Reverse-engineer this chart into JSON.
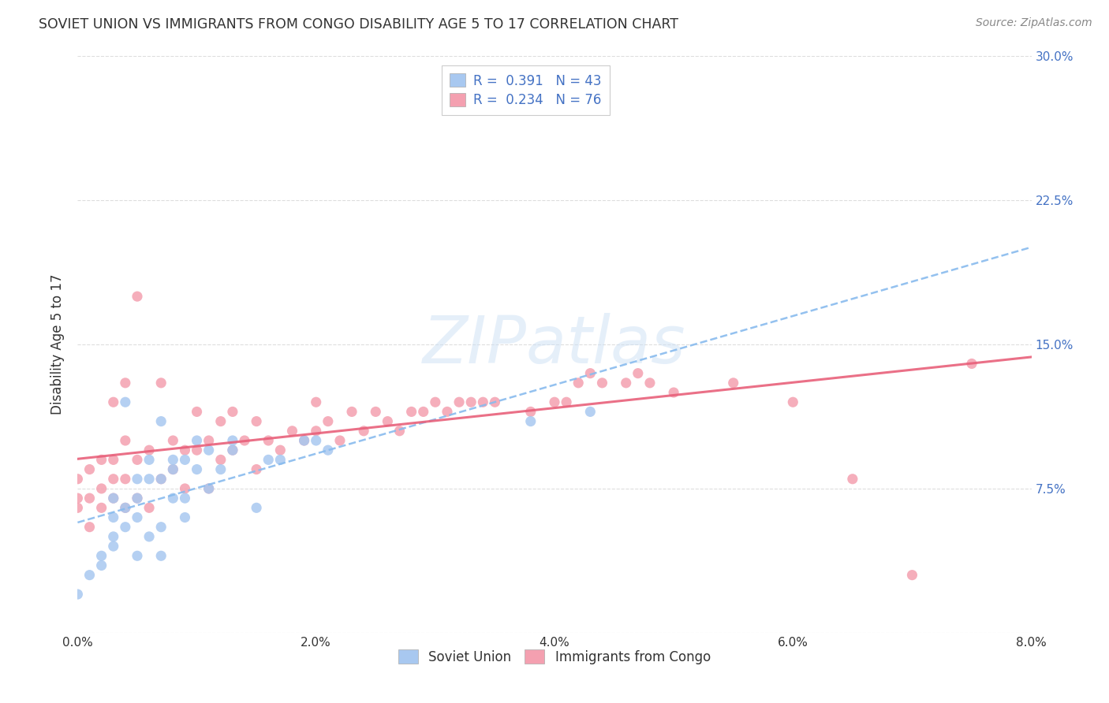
{
  "title": "SOVIET UNION VS IMMIGRANTS FROM CONGO DISABILITY AGE 5 TO 17 CORRELATION CHART",
  "source": "Source: ZipAtlas.com",
  "ylabel": "Disability Age 5 to 17",
  "x_min": 0.0,
  "x_max": 0.08,
  "y_min": 0.0,
  "y_max": 0.3,
  "x_ticks": [
    0.0,
    0.02,
    0.04,
    0.06,
    0.08
  ],
  "x_tick_labels": [
    "0.0%",
    "2.0%",
    "4.0%",
    "6.0%",
    "8.0%"
  ],
  "y_ticks": [
    0.0,
    0.075,
    0.15,
    0.225,
    0.3
  ],
  "y_tick_labels": [
    "",
    "7.5%",
    "15.0%",
    "22.5%",
    "30.0%"
  ],
  "legend_R1": "0.391",
  "legend_N1": "43",
  "legend_R2": "0.234",
  "legend_N2": "76",
  "color_soviet": "#a8c8f0",
  "color_congo": "#f4a0b0",
  "color_trendline_soviet": "#88bbee",
  "color_trendline_congo": "#e8607a",
  "watermark_color": "#cce0f5",
  "watermark": "ZIPatlas",
  "label_color": "#4472c4",
  "text_color": "#333333",
  "source_color": "#888888",
  "grid_color": "#dddddd",
  "soviet_x": [
    0.0,
    0.001,
    0.002,
    0.002,
    0.003,
    0.003,
    0.003,
    0.003,
    0.004,
    0.004,
    0.004,
    0.005,
    0.005,
    0.005,
    0.005,
    0.006,
    0.006,
    0.006,
    0.007,
    0.007,
    0.007,
    0.007,
    0.008,
    0.008,
    0.008,
    0.009,
    0.009,
    0.009,
    0.01,
    0.01,
    0.011,
    0.011,
    0.012,
    0.013,
    0.013,
    0.015,
    0.016,
    0.017,
    0.019,
    0.02,
    0.021,
    0.038,
    0.043
  ],
  "soviet_y": [
    0.02,
    0.03,
    0.04,
    0.035,
    0.05,
    0.06,
    0.045,
    0.07,
    0.055,
    0.065,
    0.12,
    0.04,
    0.06,
    0.07,
    0.08,
    0.05,
    0.08,
    0.09,
    0.04,
    0.055,
    0.08,
    0.11,
    0.07,
    0.085,
    0.09,
    0.06,
    0.07,
    0.09,
    0.085,
    0.1,
    0.075,
    0.095,
    0.085,
    0.095,
    0.1,
    0.065,
    0.09,
    0.09,
    0.1,
    0.1,
    0.095,
    0.11,
    0.115
  ],
  "congo_x": [
    0.0,
    0.0,
    0.0,
    0.001,
    0.001,
    0.001,
    0.002,
    0.002,
    0.002,
    0.003,
    0.003,
    0.003,
    0.003,
    0.004,
    0.004,
    0.004,
    0.004,
    0.005,
    0.005,
    0.005,
    0.006,
    0.006,
    0.007,
    0.007,
    0.008,
    0.008,
    0.009,
    0.009,
    0.01,
    0.01,
    0.011,
    0.011,
    0.012,
    0.012,
    0.013,
    0.013,
    0.014,
    0.015,
    0.015,
    0.016,
    0.017,
    0.018,
    0.019,
    0.02,
    0.02,
    0.021,
    0.022,
    0.023,
    0.024,
    0.025,
    0.026,
    0.027,
    0.028,
    0.029,
    0.03,
    0.031,
    0.032,
    0.033,
    0.034,
    0.035,
    0.036,
    0.038,
    0.04,
    0.041,
    0.042,
    0.043,
    0.044,
    0.046,
    0.047,
    0.048,
    0.05,
    0.055,
    0.06,
    0.065,
    0.07,
    0.075
  ],
  "congo_y": [
    0.065,
    0.08,
    0.07,
    0.055,
    0.07,
    0.085,
    0.065,
    0.075,
    0.09,
    0.07,
    0.08,
    0.09,
    0.12,
    0.065,
    0.08,
    0.1,
    0.13,
    0.07,
    0.09,
    0.175,
    0.065,
    0.095,
    0.08,
    0.13,
    0.085,
    0.1,
    0.075,
    0.095,
    0.095,
    0.115,
    0.075,
    0.1,
    0.09,
    0.11,
    0.095,
    0.115,
    0.1,
    0.085,
    0.11,
    0.1,
    0.095,
    0.105,
    0.1,
    0.105,
    0.12,
    0.11,
    0.1,
    0.115,
    0.105,
    0.115,
    0.11,
    0.105,
    0.115,
    0.115,
    0.12,
    0.115,
    0.12,
    0.12,
    0.12,
    0.12,
    0.28,
    0.115,
    0.12,
    0.12,
    0.13,
    0.135,
    0.13,
    0.13,
    0.135,
    0.13,
    0.125,
    0.13,
    0.12,
    0.08,
    0.03,
    0.14
  ]
}
